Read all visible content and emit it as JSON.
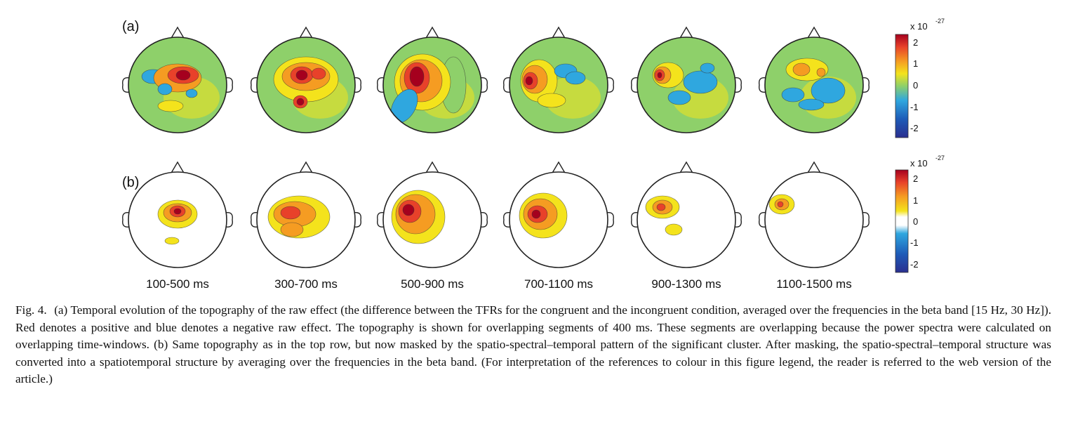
{
  "figure": {
    "panel_labels": [
      "(a)",
      "(b)"
    ],
    "time_windows": [
      "100-500 ms",
      "300-700 ms",
      "500-900 ms",
      "700-1100 ms",
      "900-1300 ms",
      "1100-1500 ms"
    ],
    "colorbar": {
      "exponent_base": "x 10",
      "exponent": "-27",
      "ticks": [
        "2",
        "1",
        "0",
        "-1",
        "-2"
      ],
      "range": [
        -2.5,
        2.5
      ]
    },
    "colors": {
      "dark_red": "#a5001e",
      "red": "#e8412a",
      "orange": "#f59c22",
      "yellow": "#f4e31c",
      "green": "#8ed06a",
      "cyan": "#2fa7df",
      "blue": "#1e5bb8",
      "dark_blue": "#2a2f8f"
    }
  },
  "caption": {
    "label": "Fig. 4.",
    "text": "(a) Temporal evolution of the topography of the raw effect (the difference between the TFRs for the congruent and the incongruent condition, averaged over the frequencies in the beta band [15 Hz, 30 Hz]). Red denotes a positive and blue denotes a negative raw effect. The topography is shown for overlapping segments of 400 ms. These segments are overlapping because the power spectra were calculated on overlapping time-windows. (b) Same topography as in the top row, but now masked by the spatio-spectral–temporal pattern of the significant cluster. After masking, the spatio-spectral–temporal structure was converted into a spatiotemporal structure by averaging over the frequencies in the beta band. (For interpretation of the references to colour in this figure legend, the reader is referred to the web version of the article.)"
  }
}
